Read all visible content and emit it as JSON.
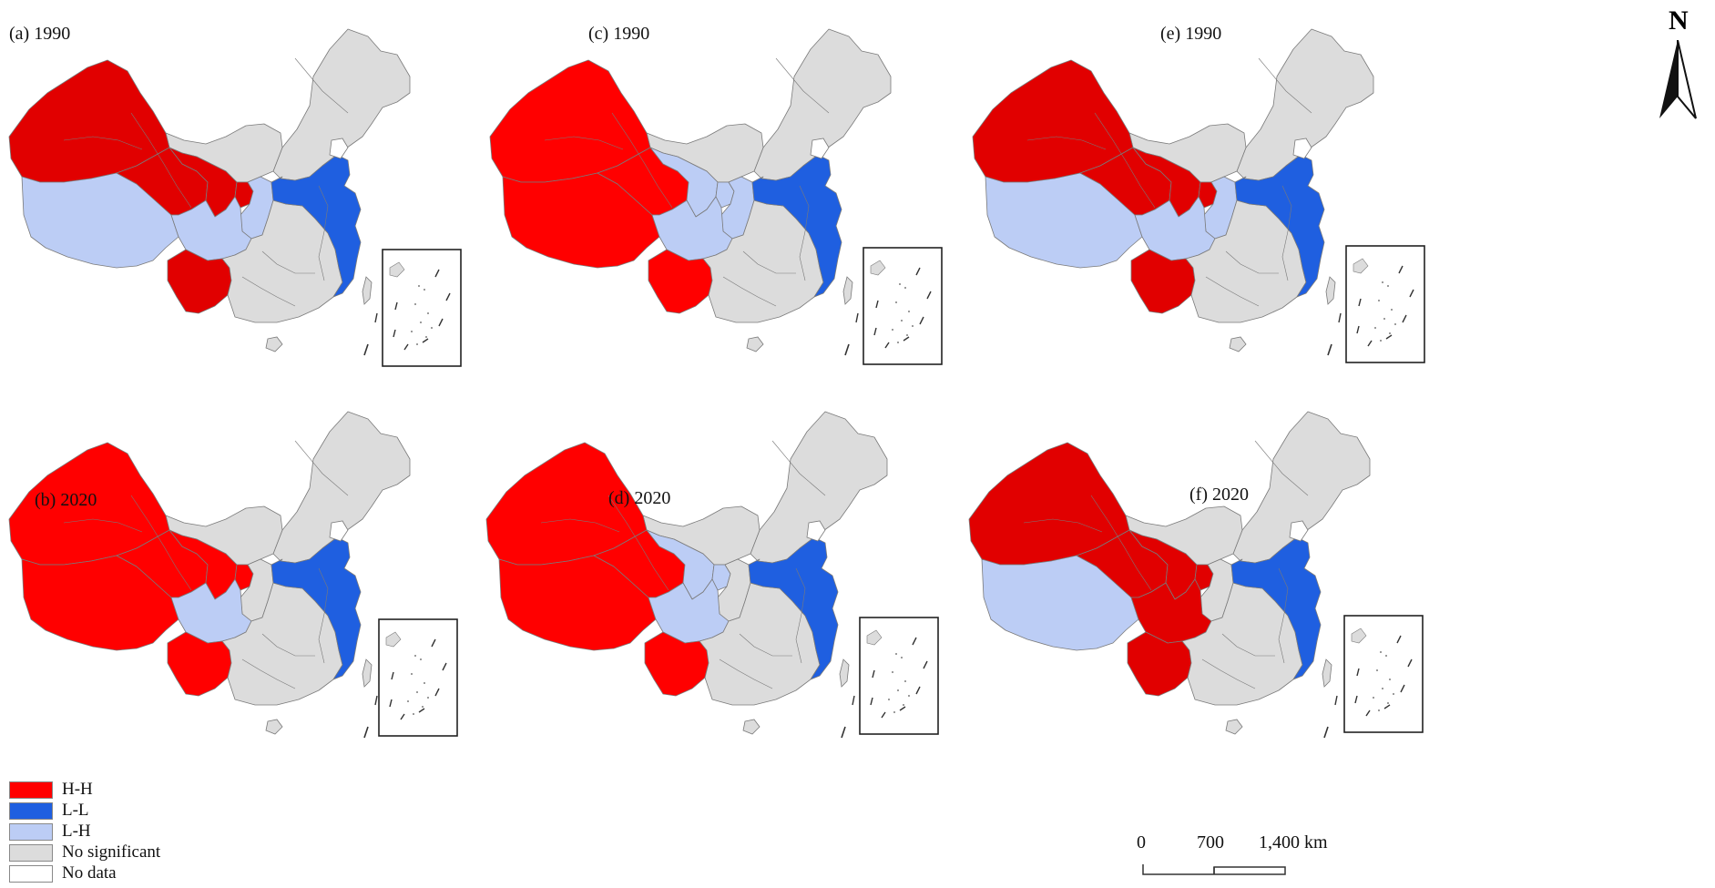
{
  "legend": {
    "items": [
      {
        "label": "H-H",
        "color": "#ff0000"
      },
      {
        "label": "L-L",
        "color": "#1f5fe0"
      },
      {
        "label": "L-H",
        "color": "#bccdf5"
      },
      {
        "label": "No significant",
        "color": "#dcdcdc"
      },
      {
        "label": "No data",
        "color": "#ffffff"
      }
    ]
  },
  "colors": {
    "hh": "#ff0000",
    "hh_dark": "#e10000",
    "ll": "#1f5fe0",
    "lh": "#bccdf5",
    "ns": "#dcdcdc",
    "nodata": "#ffffff",
    "boundary": "#7a7a7a"
  },
  "panels": [
    {
      "label": "(a) 1990",
      "hh_shade": "dark",
      "northwest": "HH",
      "tibet": "LH",
      "qinghai": "HH",
      "gansu": "HH",
      "ningxia": "HH",
      "sichuan": "LH",
      "yunnan": "HH",
      "shaanxi": "LH",
      "central": "NS",
      "east": "LL"
    },
    {
      "label": "(c) 1990",
      "hh_shade": "bright",
      "northwest": "HH",
      "tibet": "HH",
      "qinghai": "HH",
      "gansu": "LH",
      "ningxia": "LH",
      "sichuan": "LH",
      "yunnan": "HH",
      "shaanxi": "LH",
      "central": "NS",
      "east": "LL"
    },
    {
      "label": "(e) 1990",
      "hh_shade": "dark",
      "northwest": "HH",
      "tibet": "LH",
      "qinghai": "HH",
      "gansu": "HH",
      "ningxia": "HH",
      "sichuan": "LH",
      "yunnan": "HH",
      "shaanxi": "LH",
      "central": "NS",
      "east": "LL"
    },
    {
      "label": "(b) 2020",
      "hh_shade": "bright",
      "northwest": "HH",
      "tibet": "HH",
      "qinghai": "HH",
      "gansu": "HH",
      "ningxia": "HH",
      "sichuan": "LH",
      "yunnan": "HH",
      "shaanxi": "NS",
      "central": "NS",
      "east": "LL"
    },
    {
      "label": "(d) 2020",
      "hh_shade": "bright",
      "northwest": "HH",
      "tibet": "HH",
      "qinghai": "HH",
      "gansu": "LH",
      "ningxia": "LH",
      "sichuan": "LH",
      "yunnan": "HH",
      "shaanxi": "NS",
      "central": "NS",
      "east": "LL"
    },
    {
      "label": "(f) 2020",
      "hh_shade": "dark",
      "northwest": "HH",
      "tibet": "LH",
      "qinghai": "HH",
      "gansu": "HH",
      "ningxia": "HH",
      "sichuan": "HH",
      "yunnan": "HH",
      "shaanxi": "NS",
      "central": "NS",
      "east": "LL"
    }
  ],
  "scale_bar": {
    "ticks": [
      "0",
      "700",
      "1,400 km"
    ]
  },
  "north_arrow": {
    "label": "N",
    "icon": "north-arrow-icon"
  }
}
